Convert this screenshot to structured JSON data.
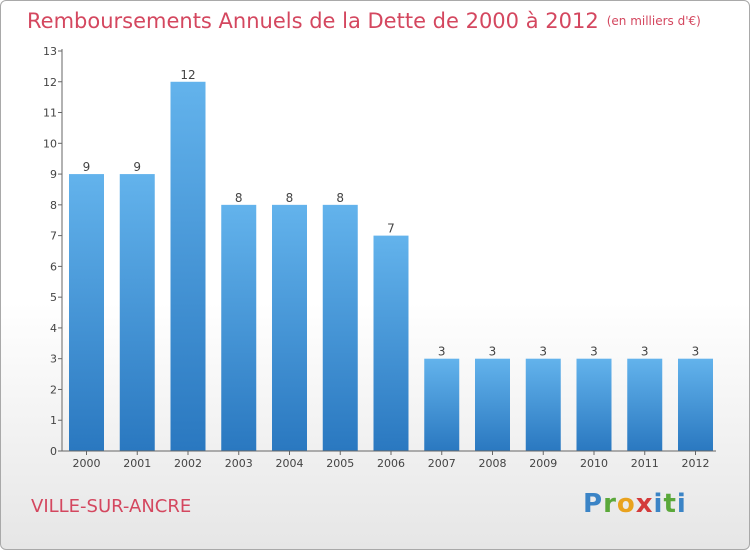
{
  "header": {
    "title": "Remboursements Annuels de la Dette de 2000 à 2012",
    "unit": "(en milliers d'€)"
  },
  "footer": {
    "town": "VILLE-SUR-ANCRE",
    "logo": "Proxiti"
  },
  "colors": {
    "title": "#d4475f",
    "bar_top": "#63b3ec",
    "bar_bottom": "#2a78c0"
  },
  "chart_data": {
    "type": "bar",
    "categories": [
      "2000",
      "2001",
      "2002",
      "2003",
      "2004",
      "2005",
      "2006",
      "2007",
      "2008",
      "2009",
      "2010",
      "2011",
      "2012"
    ],
    "values": [
      9,
      9,
      12,
      8,
      8,
      8,
      7,
      3,
      3,
      3,
      3,
      3,
      3
    ],
    "data_labels": [
      "9",
      "9",
      "12",
      "8",
      "8",
      "8",
      "7",
      "3",
      "3",
      "3",
      "3",
      "3",
      "3"
    ],
    "yticks": [
      0,
      1,
      2,
      3,
      4,
      5,
      6,
      7,
      8,
      9,
      10,
      11,
      12,
      13
    ],
    "ylim": [
      0,
      13
    ],
    "grid": false,
    "legend": "none"
  }
}
